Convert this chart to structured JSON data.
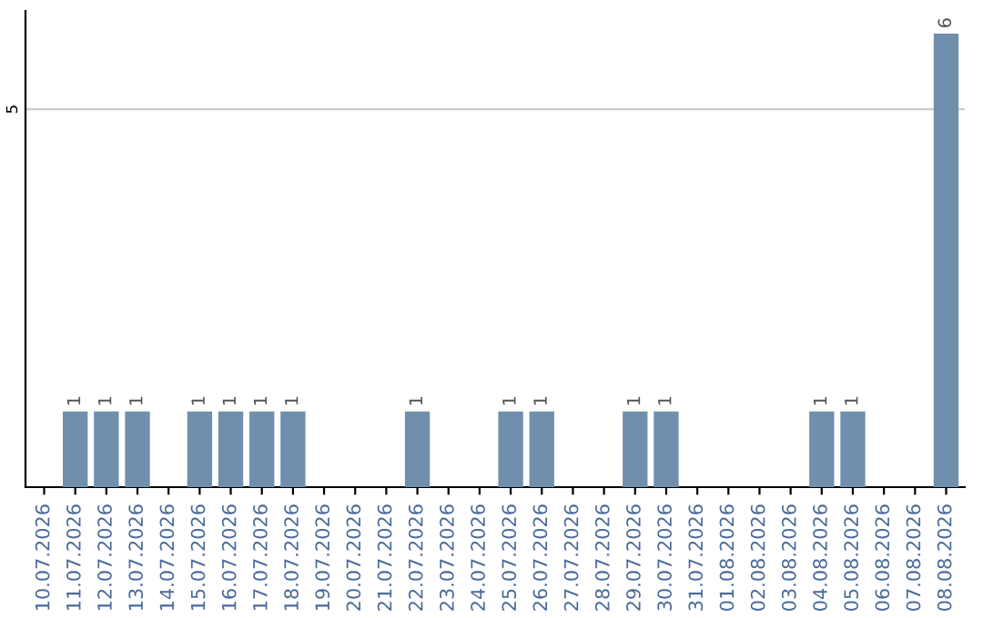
{
  "chart_data": {
    "type": "bar",
    "categories": [
      "10.07.2026",
      "11.07.2026",
      "12.07.2026",
      "13.07.2026",
      "14.07.2026",
      "15.07.2026",
      "16.07.2026",
      "17.07.2026",
      "18.07.2026",
      "19.07.2026",
      "20.07.2026",
      "21.07.2026",
      "22.07.2026",
      "23.07.2026",
      "24.07.2026",
      "25.07.2026",
      "26.07.2026",
      "27.07.2026",
      "28.07.2026",
      "29.07.2026",
      "30.07.2026",
      "31.07.2026",
      "01.08.2026",
      "02.08.2026",
      "03.08.2026",
      "04.08.2026",
      "05.08.2026",
      "06.08.2026",
      "07.08.2026",
      "08.08.2026"
    ],
    "values": [
      0,
      1,
      1,
      1,
      0,
      1,
      1,
      1,
      1,
      0,
      0,
      0,
      1,
      0,
      0,
      1,
      1,
      0,
      0,
      1,
      1,
      0,
      0,
      0,
      0,
      1,
      1,
      0,
      0,
      6
    ],
    "value_labels": [
      null,
      "1",
      "1",
      "1",
      null,
      "1",
      "1",
      "1",
      "1",
      null,
      null,
      null,
      "1",
      null,
      null,
      "1",
      "1",
      null,
      null,
      "1",
      "1",
      null,
      null,
      null,
      null,
      "1",
      "1",
      null,
      null,
      "6"
    ],
    "color": "#6f8fad",
    "ylim": [
      0,
      6.3
    ],
    "yticks": [
      5
    ],
    "grid": "y",
    "legend": false
  }
}
